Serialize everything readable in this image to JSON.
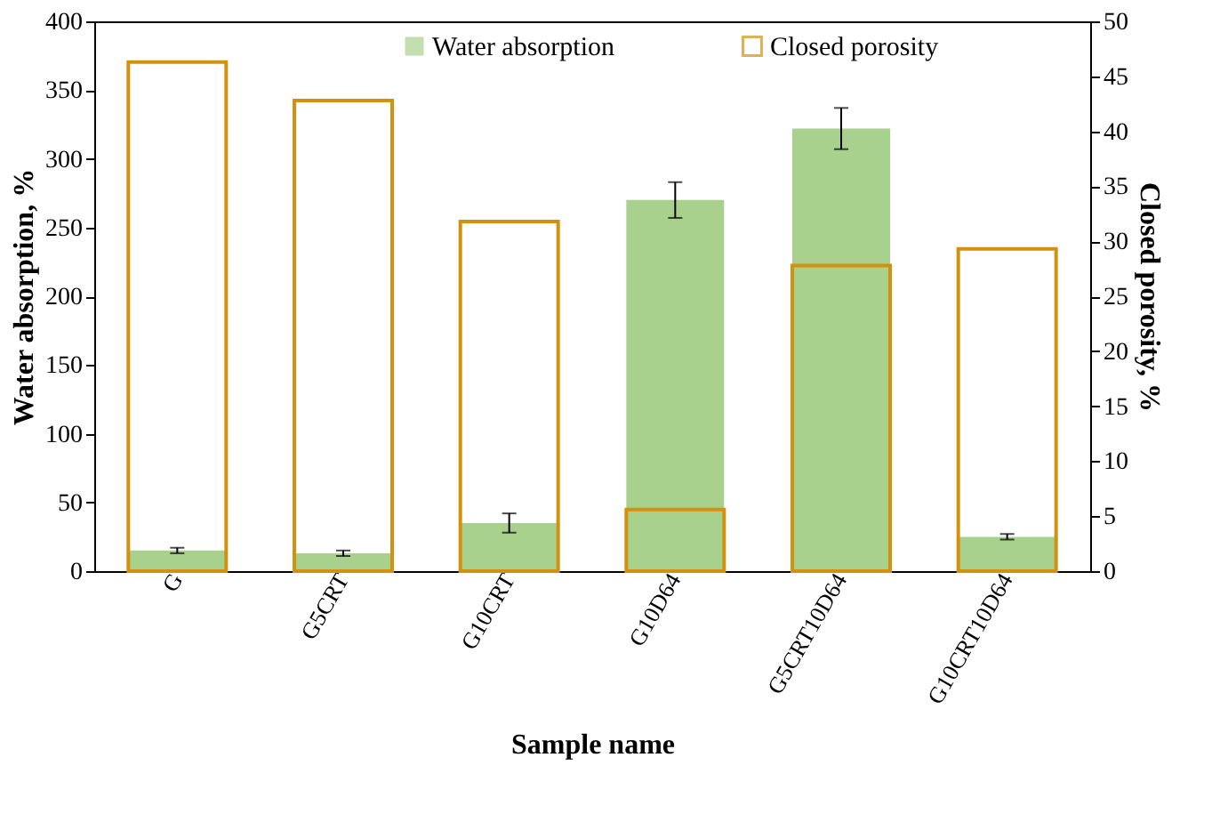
{
  "chart_data": {
    "type": "bar",
    "xlabel": "Sample name",
    "ylabel": "Water absorption, %",
    "y2label": "Closed porosity, %",
    "categories": [
      "G",
      "G5CRT",
      "G10CRT",
      "G10D64",
      "G5CRT10D64",
      "G10CRT10D64"
    ],
    "series": [
      {
        "name": "Water absorption",
        "color": "#a9d18e",
        "values": [
          15,
          13,
          35,
          270,
          322,
          25
        ],
        "errors": [
          2,
          2,
          7,
          13,
          15,
          2
        ]
      },
      {
        "name": "Closed porosity",
        "color": "#d4900f",
        "axis": "y2",
        "values": [
          46.3,
          42.8,
          31.8,
          5.6,
          27.8,
          29.3
        ]
      }
    ],
    "ylim": [
      0,
      400
    ],
    "yticks": [
      0,
      50,
      100,
      150,
      200,
      250,
      300,
      350,
      400
    ],
    "y2lim": [
      0,
      50
    ],
    "y2ticks": [
      0,
      5,
      10,
      15,
      20,
      25,
      30,
      35,
      40,
      45,
      50
    ],
    "legend": "top right",
    "grid": false
  }
}
